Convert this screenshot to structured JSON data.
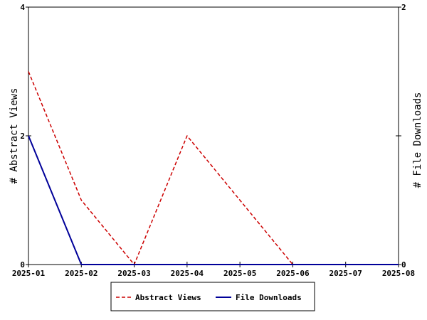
{
  "chart_data": {
    "type": "line",
    "x": [
      "2025-01",
      "2025-02",
      "2025-03",
      "2025-04",
      "2025-05",
      "2025-06",
      "2025-07",
      "2025-08"
    ],
    "y_left": {
      "label": "# Abstract Views",
      "lim": [
        0,
        4
      ],
      "ticks": [
        0,
        2,
        4
      ]
    },
    "y_right": {
      "label": "# File Downloads",
      "lim": [
        0,
        2
      ],
      "ticks": [
        0,
        1,
        2
      ]
    },
    "series": [
      {
        "name": "Abstract Views",
        "axis": "left",
        "color": "#cc0000",
        "style": "dashed",
        "x": [
          "2025-01",
          "2025-02",
          "2025-03",
          "2025-04",
          "2025-05",
          "2025-06",
          "2025-07",
          "2025-08"
        ],
        "values": [
          3,
          1,
          0,
          2,
          1,
          0,
          0,
          0
        ]
      },
      {
        "name": "File Downloads",
        "axis": "right",
        "color": "#000099",
        "style": "solid",
        "x": [
          "2025-01",
          "2025-02",
          "2025-03",
          "2025-04",
          "2025-05",
          "2025-06",
          "2025-07",
          "2025-08"
        ],
        "values": [
          1,
          0,
          0,
          0,
          0,
          0,
          0,
          0
        ]
      }
    ],
    "legend": {
      "placement": "bottom-center"
    },
    "grid": false
  }
}
